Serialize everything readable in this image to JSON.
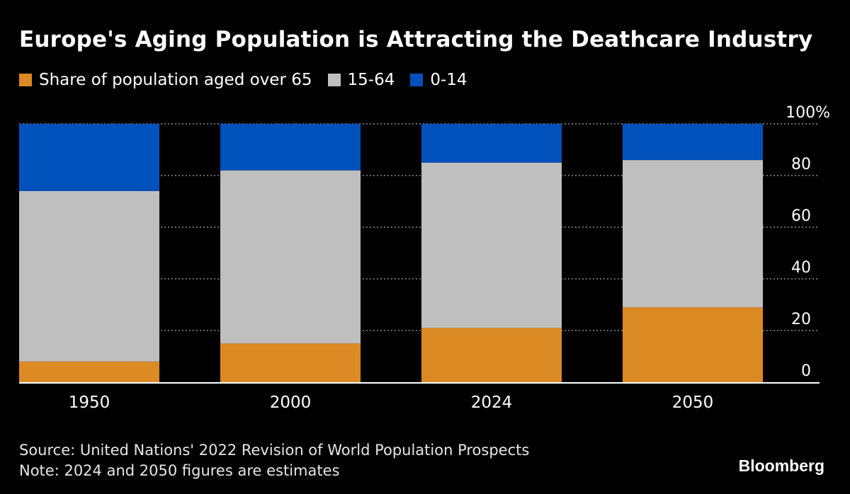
{
  "chart_data": {
    "type": "bar",
    "stacked": true,
    "title": "Europe's Aging Population is Attracting the Deathcare Industry",
    "categories": [
      "1950",
      "2000",
      "2024",
      "2050"
    ],
    "series": [
      {
        "name": "Share of population aged over 65",
        "color": "#db8a24",
        "values": [
          8,
          15,
          21,
          29
        ]
      },
      {
        "name": "15-64",
        "color": "#bfbfbf",
        "values": [
          66,
          67,
          64,
          57
        ]
      },
      {
        "name": "0-14",
        "color": "#0051bb",
        "values": [
          26,
          18,
          15,
          14
        ]
      }
    ],
    "ylim": [
      0,
      100
    ],
    "yticks": [
      0,
      20,
      40,
      60,
      80,
      100
    ],
    "ytick_labels": [
      "0",
      "20",
      "40",
      "60",
      "80",
      "100%"
    ],
    "y_axis_position": "right",
    "grid": true,
    "legend_position": "top-left"
  },
  "footer": {
    "source": "Source: United Nations' 2022 Revision of World Population Prospects",
    "note": "Note: 2024 and 2050 figures are estimates",
    "logo": "Bloomberg"
  }
}
